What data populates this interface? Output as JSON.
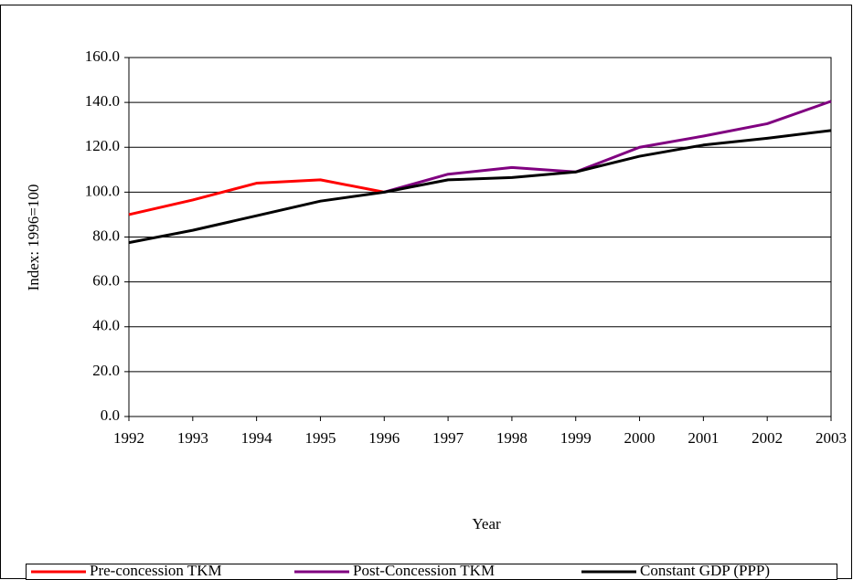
{
  "chart_data": {
    "type": "line",
    "x_label": "Year",
    "y_label": "Index: 1996=100",
    "categories": [
      "1992",
      "1993",
      "1994",
      "1995",
      "1996",
      "1997",
      "1998",
      "1999",
      "2000",
      "2001",
      "2002",
      "2003"
    ],
    "ylim": [
      0,
      160
    ],
    "yticks": [
      {
        "value": 0,
        "label": "0.0"
      },
      {
        "value": 20,
        "label": "20.0"
      },
      {
        "value": 40,
        "label": "40.0"
      },
      {
        "value": 60,
        "label": "60.0"
      },
      {
        "value": 80,
        "label": "80.0"
      },
      {
        "value": 100,
        "label": "100.0"
      },
      {
        "value": 120,
        "label": "120.0"
      },
      {
        "value": 140,
        "label": "140.0"
      },
      {
        "value": 160,
        "label": "160.0"
      }
    ],
    "grid": true,
    "legend": "bottom",
    "series": [
      {
        "name": "Pre-concession TKM",
        "color": "#ff0000",
        "values": [
          90,
          96.5,
          104,
          105.5,
          100,
          null,
          null,
          null,
          null,
          null,
          null,
          null
        ]
      },
      {
        "name": "Post-Concession TKM",
        "color": "#800080",
        "values": [
          null,
          null,
          null,
          null,
          100,
          108,
          111,
          109,
          120,
          125,
          130.5,
          140.5
        ]
      },
      {
        "name": "Constant GDP (PPP)",
        "color": "#000000",
        "values": [
          77.5,
          83,
          89.5,
          96,
          100,
          105.5,
          106.5,
          109,
          116,
          121,
          124,
          127.5
        ]
      }
    ]
  }
}
